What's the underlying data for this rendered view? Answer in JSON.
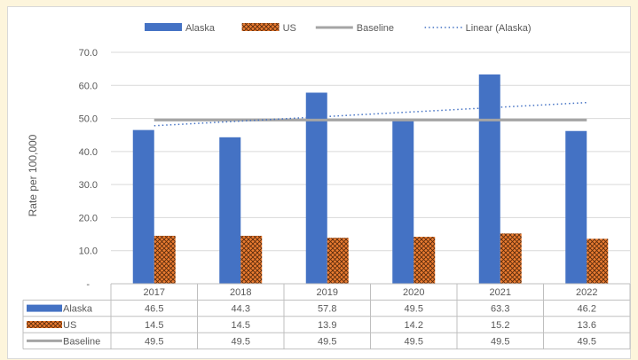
{
  "chart_data": {
    "type": "bar",
    "categories": [
      "2017",
      "2018",
      "2019",
      "2020",
      "2021",
      "2022"
    ],
    "series": [
      {
        "name": "Alaska",
        "kind": "bar",
        "pattern": "solid",
        "color": "#4472c4",
        "values": [
          46.5,
          44.3,
          57.8,
          49.5,
          63.3,
          46.2
        ]
      },
      {
        "name": "US",
        "kind": "bar",
        "pattern": "crosshatch",
        "color": "#ed7d31",
        "values": [
          14.5,
          14.5,
          13.9,
          14.2,
          15.2,
          13.6
        ]
      },
      {
        "name": "Baseline",
        "kind": "line",
        "color": "#a5a5a5",
        "values": [
          49.5,
          49.5,
          49.5,
          49.5,
          49.5,
          49.5
        ]
      }
    ],
    "trendline": {
      "name": "Linear (Alaska)",
      "of_series": "Alaska",
      "style": "dotted",
      "color": "#4472c4",
      "start": 47.8,
      "end": 54.8
    },
    "ylabel": "Rate per 100,000",
    "xlabel": "",
    "ylim": [
      0,
      70
    ],
    "y_ticks": [
      "-",
      "10.0",
      "20.0",
      "30.0",
      "40.0",
      "50.0",
      "60.0",
      "70.0"
    ],
    "grid": true,
    "legend_position": "top",
    "data_table": true
  }
}
